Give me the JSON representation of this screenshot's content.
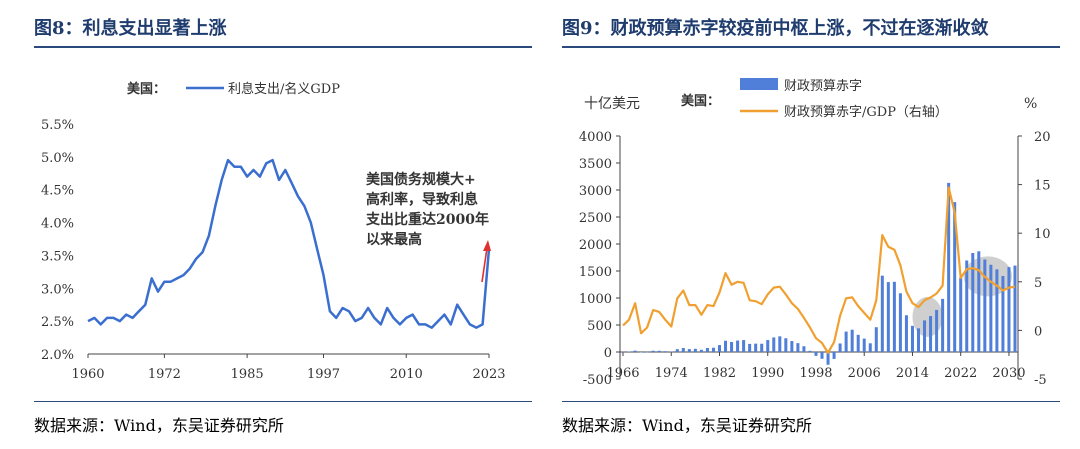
{
  "left": {
    "title": "图8：利息支出显著上涨",
    "source": "数据来源：Wind，东吴证券研究所"
  },
  "right": {
    "title": "图9：财政预算赤字较疫前中枢上涨，不过在逐渐收敛",
    "source": "数据来源：Wind，东吴证券研究所"
  },
  "chart_data": [
    {
      "type": "line",
      "title": "",
      "legend_prefix": "美国：",
      "series": [
        {
          "name": "利息支出/名义GDP",
          "color": "#3a6fd0",
          "x": [
            1960,
            1961,
            1962,
            1963,
            1964,
            1965,
            1966,
            1967,
            1968,
            1969,
            1970,
            1971,
            1972,
            1973,
            1974,
            1975,
            1976,
            1977,
            1978,
            1979,
            1980,
            1981,
            1982,
            1983,
            1984,
            1985,
            1986,
            1987,
            1988,
            1989,
            1990,
            1991,
            1992,
            1993,
            1994,
            1995,
            1996,
            1997,
            1998,
            1999,
            2000,
            2001,
            2002,
            2003,
            2004,
            2005,
            2006,
            2007,
            2008,
            2009,
            2010,
            2011,
            2012,
            2013,
            2014,
            2015,
            2016,
            2017,
            2018,
            2019,
            2020,
            2021,
            2022,
            2023
          ],
          "y": [
            2.5,
            2.55,
            2.45,
            2.55,
            2.55,
            2.5,
            2.6,
            2.55,
            2.65,
            2.75,
            3.15,
            2.95,
            3.1,
            3.1,
            3.15,
            3.2,
            3.3,
            3.45,
            3.55,
            3.8,
            4.25,
            4.65,
            4.95,
            4.85,
            4.85,
            4.7,
            4.8,
            4.7,
            4.9,
            4.95,
            4.65,
            4.8,
            4.6,
            4.4,
            4.25,
            4.0,
            3.6,
            3.2,
            2.65,
            2.55,
            2.7,
            2.65,
            2.5,
            2.55,
            2.7,
            2.55,
            2.45,
            2.7,
            2.55,
            2.45,
            2.55,
            2.6,
            2.45,
            2.45,
            2.4,
            2.5,
            2.6,
            2.45,
            2.75,
            2.6,
            2.45,
            2.4,
            2.45,
            3.6
          ]
        }
      ],
      "xlim": [
        1960,
        2023
      ],
      "ylim": [
        2.0,
        5.5
      ],
      "xticks": [
        "1960",
        "1972",
        "1985",
        "1997",
        "2010",
        "2023"
      ],
      "xtick_values": [
        1960,
        1972,
        1985,
        1997,
        2010,
        2023
      ],
      "yticks": [
        "2.0%",
        "2.5%",
        "3.0%",
        "3.5%",
        "4.0%",
        "4.5%",
        "5.0%",
        "5.5%"
      ],
      "ytick_values": [
        2.0,
        2.5,
        3.0,
        3.5,
        4.0,
        4.5,
        5.0,
        5.5
      ],
      "annotation": [
        "美国债务规模大+",
        "高利率，导致利息",
        "支出比重达2000年",
        "以来最高"
      ],
      "arrow_color": "#e03030"
    },
    {
      "type": "bar+line",
      "title": "",
      "legend_prefix": "美国：",
      "left_unit": "十亿美元",
      "right_unit": "%",
      "categories": [
        1966,
        1967,
        1968,
        1969,
        1970,
        1971,
        1972,
        1973,
        1974,
        1975,
        1976,
        1977,
        1978,
        1979,
        1980,
        1981,
        1982,
        1983,
        1984,
        1985,
        1986,
        1987,
        1988,
        1989,
        1990,
        1991,
        1992,
        1993,
        1994,
        1995,
        1996,
        1997,
        1998,
        1999,
        2000,
        2001,
        2002,
        2003,
        2004,
        2005,
        2006,
        2007,
        2008,
        2009,
        2010,
        2011,
        2012,
        2013,
        2014,
        2015,
        2016,
        2017,
        2018,
        2019,
        2020,
        2021,
        2022,
        2023,
        2024,
        2025,
        2026,
        2027,
        2028,
        2029,
        2030,
        2031
      ],
      "series": [
        {
          "name": "财政预算赤字",
          "kind": "bar",
          "axis": "left",
          "color": "#4f7fd8",
          "values": [
            4,
            9,
            25,
            -3,
            3,
            23,
            23,
            15,
            6,
            53,
            74,
            54,
            59,
            41,
            74,
            79,
            128,
            208,
            185,
            212,
            221,
            150,
            155,
            153,
            221,
            269,
            290,
            255,
            203,
            164,
            107,
            22,
            -69,
            -126,
            -236,
            -128,
            158,
            378,
            413,
            318,
            248,
            161,
            459,
            1413,
            1294,
            1300,
            1087,
            680,
            485,
            438,
            585,
            665,
            779,
            984,
            3132,
            2775,
            1376,
            1695,
            1833,
            1865,
            1713,
            1616,
            1531,
            1407,
            1572,
            1600
          ]
        },
        {
          "name": "财政预算赤字/GDP（右轴）",
          "kind": "line",
          "axis": "right",
          "color": "#f0a030",
          "values": [
            0.5,
            1.1,
            2.8,
            -0.3,
            0.3,
            2.1,
            1.9,
            1.1,
            0.4,
            3.3,
            4.1,
            2.6,
            2.6,
            1.6,
            2.6,
            2.5,
            3.9,
            5.9,
            4.7,
            5.0,
            4.9,
            3.1,
            3.0,
            2.7,
            3.7,
            4.4,
            4.5,
            3.7,
            2.8,
            2.2,
            1.3,
            0.3,
            -0.8,
            -1.3,
            -2.3,
            -1.2,
            1.5,
            3.3,
            3.4,
            2.5,
            1.8,
            1.1,
            3.1,
            9.8,
            8.6,
            8.3,
            6.7,
            4.0,
            2.8,
            2.4,
            3.1,
            3.4,
            3.8,
            4.6,
            14.7,
            12.1,
            5.4,
            6.3,
            6.4,
            6.2,
            5.5,
            5.0,
            4.6,
            4.1,
            4.4,
            4.5
          ]
        }
      ],
      "left_ylim": [
        -500,
        4000
      ],
      "right_ylim": [
        -5,
        20
      ],
      "xlim": [
        1966,
        2031
      ],
      "xticks": [
        "1966",
        "1974",
        "1982",
        "1990",
        "1998",
        "2006",
        "2014",
        "2022",
        "2030"
      ],
      "xtick_values": [
        1966,
        1974,
        1982,
        1990,
        1998,
        2006,
        2014,
        2022,
        2030
      ],
      "left_yticks": [
        "-500",
        "0",
        "500",
        "1000",
        "1500",
        "2000",
        "2500",
        "3000",
        "3500",
        "4000"
      ],
      "left_ytick_values": [
        -500,
        0,
        500,
        1000,
        1500,
        2000,
        2500,
        3000,
        3500,
        4000
      ],
      "right_yticks": [
        "-5",
        "0",
        "5",
        "10",
        "15",
        "20"
      ],
      "right_ytick_values": [
        -5,
        0,
        5,
        10,
        15,
        20
      ],
      "highlight_ellipses": [
        {
          "center_year": 2016.5,
          "center_value": 650,
          "span_years": 5
        },
        {
          "center_year": 2026.5,
          "center_value": 1400,
          "span_years": 8
        }
      ],
      "highlight_color": "#bfbfbf"
    }
  ]
}
